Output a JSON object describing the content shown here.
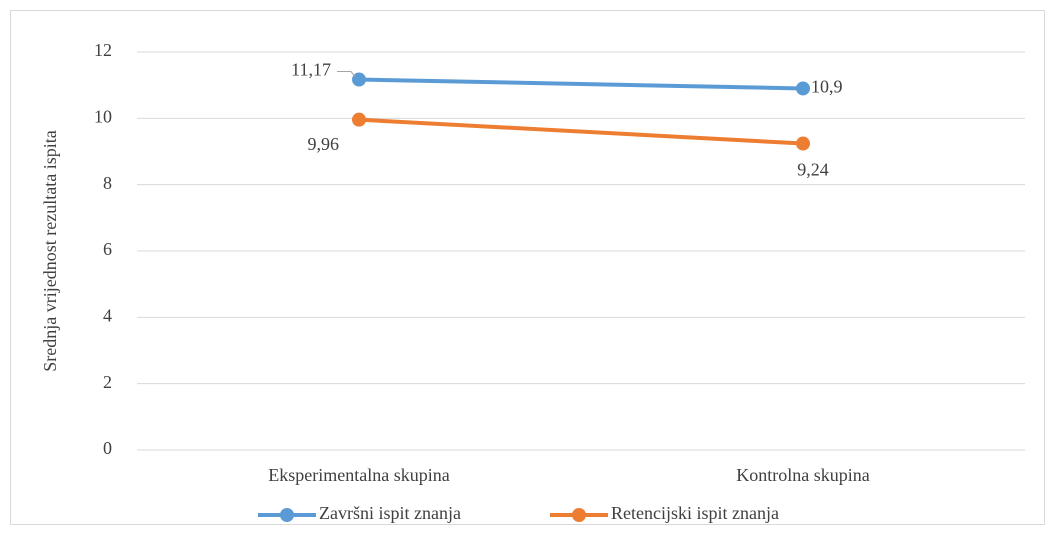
{
  "chart_data": {
    "type": "line",
    "y_label": "Srednja vrijednost rezultata ispita",
    "categories": [
      "Eksperimentalna skupina",
      "Kontrolna skupina"
    ],
    "series": [
      {
        "name": "Završni ispit znanja",
        "color": "#5b9bd5",
        "values": [
          11.17,
          10.9
        ],
        "value_labels": [
          "11,17",
          "10,9"
        ]
      },
      {
        "name": "Retencijski ispit znanja",
        "color": "#ed7d31",
        "values": [
          9.96,
          9.24
        ],
        "value_labels": [
          "9,96",
          "9,24"
        ]
      }
    ],
    "ylim": [
      0,
      12
    ],
    "yticks": [
      0,
      2,
      4,
      6,
      8,
      10,
      12
    ],
    "grid": true,
    "legend": "bottom"
  }
}
